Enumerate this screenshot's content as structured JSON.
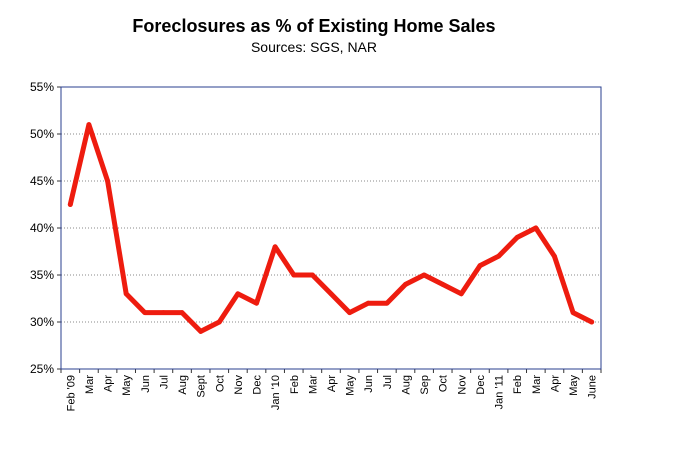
{
  "chart_data": {
    "type": "line",
    "title": "Foreclosures as % of Existing Home Sales",
    "subtitle": "Sources: SGS, NAR",
    "xlabel": "",
    "ylabel": "",
    "ylim": [
      25,
      55
    ],
    "y_ticks": [
      "25%",
      "30%",
      "35%",
      "40%",
      "45%",
      "50%",
      "55%"
    ],
    "y_tick_values": [
      25,
      30,
      35,
      40,
      45,
      50,
      55
    ],
    "grid": true,
    "legend": "none",
    "categories": [
      "Feb '09",
      "Mar",
      "Apr",
      "May",
      "Jun",
      "Jul",
      "Aug",
      "Sept",
      "Oct",
      "Nov",
      "Dec",
      "Jan '10",
      "Feb",
      "Mar",
      "Apr",
      "May",
      "Jun",
      "Jul",
      "Aug",
      "Sep",
      "Oct",
      "Nov",
      "Dec",
      "Jan '11",
      "Feb",
      "Mar",
      "Apr",
      "May",
      "June"
    ],
    "series": [
      {
        "color": "#ee1c0f",
        "values": [
          42.5,
          51,
          45,
          33,
          31,
          31,
          31,
          29,
          30,
          33,
          32,
          38,
          35,
          35,
          33,
          31,
          32,
          32,
          34,
          35,
          34,
          33,
          36,
          37,
          39,
          40,
          37,
          31,
          30
        ]
      }
    ]
  }
}
